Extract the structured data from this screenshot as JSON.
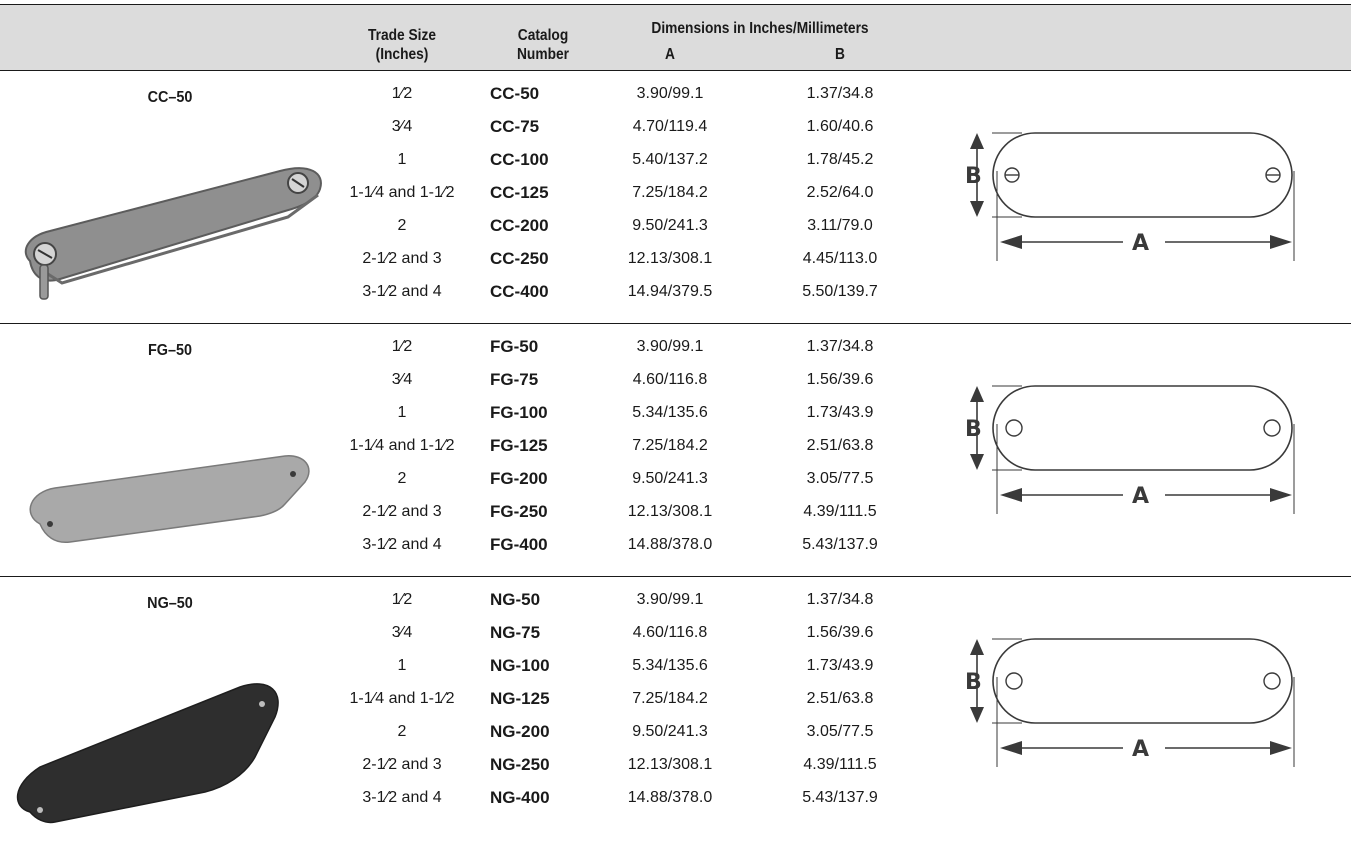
{
  "header": {
    "trade_size": "Trade Size\n(Inches)",
    "trade_size_l1": "Trade Size",
    "trade_size_l2": "(Inches)",
    "catalog_l1": "Catalog",
    "catalog_l2": "Number",
    "dimensions": "Dimensions in Inches/Millimeters",
    "col_a": "A",
    "col_b": "B"
  },
  "sections": [
    {
      "label": "CC–50",
      "photo_shade": "#8f8f8f",
      "diagram_holes": "screw",
      "diagram_labels": {
        "a": "A",
        "b": "B"
      },
      "rows": [
        {
          "trade": "1⁄2",
          "catalog": "CC-50",
          "a": "3.90/99.1",
          "b": "1.37/34.8"
        },
        {
          "trade": "3⁄4",
          "catalog": "CC-75",
          "a": "4.70/119.4",
          "b": "1.60/40.6"
        },
        {
          "trade": "1",
          "catalog": "CC-100",
          "a": "5.40/137.2",
          "b": "1.78/45.2"
        },
        {
          "trade": "1-1⁄4 and 1-1⁄2",
          "catalog": "CC-125",
          "a": "7.25/184.2",
          "b": "2.52/64.0"
        },
        {
          "trade": "2",
          "catalog": "CC-200",
          "a": "9.50/241.3",
          "b": "3.11/79.0"
        },
        {
          "trade": "2-1⁄2 and 3",
          "catalog": "CC-250",
          "a": "12.13/308.1",
          "b": "4.45/113.0"
        },
        {
          "trade": "3-1⁄2 and 4",
          "catalog": "CC-400",
          "a": "14.94/379.5",
          "b": "5.50/139.7"
        }
      ]
    },
    {
      "label": "FG–50",
      "photo_shade": "#a9a9a9",
      "diagram_holes": "open",
      "diagram_labels": {
        "a": "A",
        "b": "B"
      },
      "rows": [
        {
          "trade": "1⁄2",
          "catalog": "FG-50",
          "a": "3.90/99.1",
          "b": "1.37/34.8"
        },
        {
          "trade": "3⁄4",
          "catalog": "FG-75",
          "a": "4.60/116.8",
          "b": "1.56/39.6"
        },
        {
          "trade": "1",
          "catalog": "FG-100",
          "a": "5.34/135.6",
          "b": "1.73/43.9"
        },
        {
          "trade": "1-1⁄4 and 1-1⁄2",
          "catalog": "FG-125",
          "a": "7.25/184.2",
          "b": "2.51/63.8"
        },
        {
          "trade": "2",
          "catalog": "FG-200",
          "a": "9.50/241.3",
          "b": "3.05/77.5"
        },
        {
          "trade": "2-1⁄2 and 3",
          "catalog": "FG-250",
          "a": "12.13/308.1",
          "b": "4.39/111.5"
        },
        {
          "trade": "3-1⁄2 and 4",
          "catalog": "FG-400",
          "a": "14.88/378.0",
          "b": "5.43/137.9"
        }
      ]
    },
    {
      "label": "NG–50",
      "photo_shade": "#2e2e2e",
      "diagram_holes": "open",
      "diagram_labels": {
        "a": "A",
        "b": "B"
      },
      "rows": [
        {
          "trade": "1⁄2",
          "catalog": "NG-50",
          "a": "3.90/99.1",
          "b": "1.37/34.8"
        },
        {
          "trade": "3⁄4",
          "catalog": "NG-75",
          "a": "4.60/116.8",
          "b": "1.56/39.6"
        },
        {
          "trade": "1",
          "catalog": "NG-100",
          "a": "5.34/135.6",
          "b": "1.73/43.9"
        },
        {
          "trade": "1-1⁄4 and 1-1⁄2",
          "catalog": "NG-125",
          "a": "7.25/184.2",
          "b": "2.51/63.8"
        },
        {
          "trade": "2",
          "catalog": "NG-200",
          "a": "9.50/241.3",
          "b": "3.05/77.5"
        },
        {
          "trade": "2-1⁄2 and 3",
          "catalog": "NG-250",
          "a": "12.13/308.1",
          "b": "4.39/111.5"
        },
        {
          "trade": "3-1⁄2 and 4",
          "catalog": "NG-400",
          "a": "14.88/378.0",
          "b": "5.43/137.9"
        }
      ]
    }
  ]
}
